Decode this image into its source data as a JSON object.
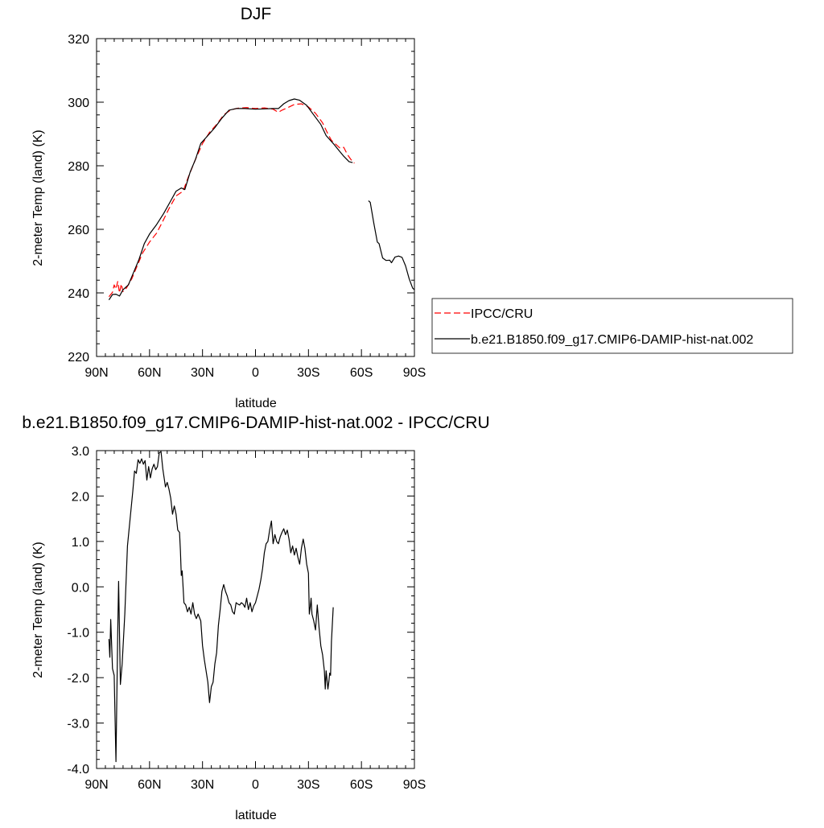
{
  "chart_data": [
    {
      "type": "line",
      "title": "DJF",
      "xlabel": "latitude",
      "ylabel": "2-meter Temp (land) (K)",
      "xlim": [
        90,
        -90
      ],
      "ylim": [
        220,
        320
      ],
      "xticks": [
        90,
        60,
        30,
        0,
        -30,
        -60,
        -90
      ],
      "xtick_labels": [
        "90N",
        "60N",
        "30N",
        "0",
        "30S",
        "60S",
        "90S"
      ],
      "yticks": [
        220,
        240,
        260,
        280,
        300,
        320
      ],
      "ytick_labels": [
        "220",
        "240",
        "260",
        "280",
        "300",
        "320"
      ],
      "legend": "outside-right",
      "series": [
        {
          "name": "IPCC/CRU",
          "color": "#ff0000",
          "dash": "dashed",
          "segments": [
            [
              [
                83,
                238.8
              ],
              [
                81,
                240.2
              ],
              [
                80,
                242.5
              ],
              [
                79,
                241.2
              ],
              [
                78,
                243.6
              ],
              [
                77,
                240.0
              ],
              [
                76,
                242.8
              ],
              [
                75,
                240.4
              ],
              [
                73,
                241.6
              ],
              [
                70,
                244.5
              ],
              [
                67,
                248.5
              ],
              [
                64,
                252.5
              ],
              [
                60,
                256.0
              ],
              [
                56,
                258.8
              ],
              [
                53,
                262.0
              ],
              [
                49,
                266.5
              ],
              [
                45,
                270.5
              ],
              [
                41,
                272.0
              ],
              [
                38,
                276.5
              ],
              [
                34,
                282.0
              ],
              [
                30,
                287.0
              ],
              [
                26,
                290.5
              ],
              [
                22,
                293.0
              ],
              [
                18,
                296.0
              ],
              [
                14,
                297.6
              ],
              [
                10,
                298.1
              ],
              [
                5,
                298.3
              ],
              [
                0,
                298.0
              ],
              [
                -5,
                298.2
              ],
              [
                -10,
                297.8
              ],
              [
                -13,
                296.8
              ],
              [
                -15,
                297.5
              ],
              [
                -18,
                298.2
              ],
              [
                -22,
                299.3
              ],
              [
                -26,
                299.5
              ],
              [
                -30,
                298.5
              ],
              [
                -34,
                296.5
              ],
              [
                -38,
                293.5
              ],
              [
                -41,
                290.0
              ],
              [
                -43,
                288.0
              ],
              [
                -46,
                286.5
              ],
              [
                -48,
                285.5
              ],
              [
                -50,
                285.8
              ],
              [
                -52,
                283.6
              ],
              [
                -54,
                282.0
              ],
              [
                -56,
                280.8
              ]
            ]
          ]
        },
        {
          "name": "b.e21.B1850.f09_g17.CMIP6-DAMIP-hist-nat.002",
          "color": "#000000",
          "dash": "solid",
          "segments": [
            [
              [
                83,
                237.8
              ],
              [
                81,
                239.5
              ],
              [
                79,
                239.6
              ],
              [
                77,
                239.0
              ],
              [
                75,
                241.0
              ],
              [
                72,
                242.5
              ],
              [
                69,
                246.5
              ],
              [
                66,
                250.5
              ],
              [
                63,
                255.5
              ],
              [
                60,
                258.5
              ],
              [
                56,
                261.5
              ],
              [
                52,
                265.0
              ],
              [
                48,
                269.0
              ],
              [
                45,
                272.0
              ],
              [
                42,
                273.0
              ],
              [
                40,
                272.5
              ],
              [
                37,
                278.0
              ],
              [
                34,
                282.0
              ],
              [
                31,
                287.0
              ],
              [
                27,
                289.5
              ],
              [
                23,
                292.0
              ],
              [
                19,
                295.0
              ],
              [
                15,
                297.5
              ],
              [
                11,
                298.0
              ],
              [
                6,
                298.0
              ],
              [
                0,
                297.8
              ],
              [
                -5,
                297.9
              ],
              [
                -10,
                298.0
              ],
              [
                -13,
                298.0
              ],
              [
                -16,
                299.5
              ],
              [
                -19,
                300.5
              ],
              [
                -22,
                301.0
              ],
              [
                -25,
                300.6
              ],
              [
                -29,
                299.0
              ],
              [
                -33,
                296.0
              ],
              [
                -37,
                293.0
              ],
              [
                -40,
                289.5
              ],
              [
                -44,
                287.0
              ],
              [
                -47,
                285.0
              ],
              [
                -50,
                283.0
              ],
              [
                -53,
                281.3
              ],
              [
                -55,
                281.0
              ]
            ],
            [
              [
                -64,
                269.0
              ],
              [
                -65,
                268.5
              ],
              [
                -67,
                262.0
              ],
              [
                -69,
                256.0
              ],
              [
                -70,
                255.5
              ],
              [
                -72,
                251.0
              ],
              [
                -74,
                250.2
              ],
              [
                -76,
                250.3
              ],
              [
                -77,
                249.5
              ],
              [
                -79,
                251.3
              ],
              [
                -81,
                251.6
              ],
              [
                -83,
                251.2
              ],
              [
                -85,
                248.5
              ],
              [
                -87,
                244.5
              ],
              [
                -89,
                241.5
              ],
              [
                -90,
                241.0
              ]
            ]
          ]
        }
      ]
    },
    {
      "type": "line",
      "title": "b.e21.B1850.f09_g17.CMIP6-DAMIP-hist-nat.002 - IPCC/CRU",
      "xlabel": "latitude",
      "ylabel": "2-meter Temp (land) (K)",
      "xlim": [
        90,
        -90
      ],
      "ylim": [
        -4.0,
        3.0
      ],
      "xticks": [
        90,
        60,
        30,
        0,
        -30,
        -60,
        -90
      ],
      "xtick_labels": [
        "90N",
        "60N",
        "30N",
        "0",
        "30S",
        "60S",
        "90S"
      ],
      "yticks": [
        -4.0,
        -3.0,
        -2.0,
        -1.0,
        0.0,
        1.0,
        2.0,
        3.0
      ],
      "ytick_labels": [
        "-4.0",
        "-3.0",
        "-2.0",
        "-1.0",
        "0.0",
        "1.0",
        "2.0",
        "3.0"
      ],
      "series": [
        {
          "color": "#000000",
          "dash": "solid",
          "segments": [
            [
              [
                83,
                -1.15
              ],
              [
                82.5,
                -1.55
              ],
              [
                82,
                -0.72
              ],
              [
                81,
                -1.8
              ],
              [
                80,
                -1.95
              ],
              [
                79,
                -3.85
              ],
              [
                78,
                -1.0
              ],
              [
                77.5,
                0.12
              ],
              [
                76.5,
                -2.15
              ],
              [
                75.5,
                -1.7
              ],
              [
                74,
                -0.6
              ],
              [
                72.5,
                0.9
              ],
              [
                71,
                1.5
              ],
              [
                69.5,
                2.1
              ],
              [
                68.5,
                2.55
              ],
              [
                67.5,
                2.5
              ],
              [
                66.5,
                2.8
              ],
              [
                65.5,
                2.72
              ],
              [
                64.5,
                2.82
              ],
              [
                63.5,
                2.7
              ],
              [
                62.5,
                2.78
              ],
              [
                61.5,
                2.35
              ],
              [
                60.5,
                2.65
              ],
              [
                59.5,
                2.4
              ],
              [
                58.5,
                2.6
              ],
              [
                57.5,
                2.7
              ],
              [
                56.5,
                2.58
              ],
              [
                55.5,
                2.65
              ],
              [
                54.5,
                2.95
              ],
              [
                53.5,
                2.98
              ],
              [
                52.5,
                2.6
              ],
              [
                51,
                2.2
              ],
              [
                50,
                2.3
              ],
              [
                49,
                2.15
              ],
              [
                48,
                1.95
              ],
              [
                47,
                1.6
              ],
              [
                46,
                1.78
              ],
              [
                45,
                1.6
              ],
              [
                44,
                1.25
              ],
              [
                43,
                1.2
              ],
              [
                42.5,
                0.8
              ],
              [
                42,
                0.25
              ],
              [
                41.5,
                0.35
              ],
              [
                40.5,
                -0.35
              ],
              [
                39.5,
                -0.4
              ],
              [
                38.5,
                -0.55
              ],
              [
                37.5,
                -0.45
              ],
              [
                36.5,
                -0.6
              ],
              [
                35.5,
                -0.35
              ],
              [
                34.5,
                -0.6
              ],
              [
                33.5,
                -0.7
              ],
              [
                32.5,
                -0.6
              ],
              [
                31,
                -0.75
              ],
              [
                30,
                -1.3
              ],
              [
                29,
                -1.6
              ],
              [
                28,
                -1.85
              ],
              [
                27,
                -2.1
              ],
              [
                26,
                -2.55
              ],
              [
                25,
                -2.2
              ],
              [
                24,
                -2.1
              ],
              [
                23,
                -1.7
              ],
              [
                22,
                -1.45
              ],
              [
                21,
                -0.85
              ],
              [
                20,
                -0.5
              ],
              [
                19,
                -0.1
              ],
              [
                18,
                0.05
              ],
              [
                17,
                -0.1
              ],
              [
                16,
                -0.2
              ],
              [
                15,
                -0.35
              ],
              [
                14,
                -0.4
              ],
              [
                13,
                -0.55
              ],
              [
                12,
                -0.6
              ],
              [
                11,
                -0.35
              ],
              [
                10,
                -0.38
              ],
              [
                9,
                -0.4
              ],
              [
                8,
                -0.35
              ],
              [
                7,
                -0.38
              ],
              [
                6,
                -0.45
              ],
              [
                5,
                -0.25
              ],
              [
                4,
                -0.5
              ],
              [
                3,
                -0.35
              ],
              [
                2,
                -0.55
              ],
              [
                1,
                -0.42
              ],
              [
                0,
                -0.35
              ],
              [
                -1,
                -0.2
              ],
              [
                -2,
                -0.05
              ],
              [
                -3,
                0.15
              ],
              [
                -4,
                0.4
              ],
              [
                -5,
                0.75
              ],
              [
                -6,
                0.95
              ],
              [
                -7,
                1.0
              ],
              [
                -8,
                1.25
              ],
              [
                -9,
                1.45
              ],
              [
                -10,
                0.95
              ],
              [
                -11,
                1.15
              ],
              [
                -12,
                1.0
              ],
              [
                -13,
                0.95
              ],
              [
                -14,
                1.1
              ],
              [
                -15,
                1.2
              ],
              [
                -16,
                1.28
              ],
              [
                -17,
                1.15
              ],
              [
                -18,
                1.25
              ],
              [
                -19,
                1.05
              ],
              [
                -20,
                0.75
              ],
              [
                -21,
                0.9
              ],
              [
                -22,
                0.7
              ],
              [
                -23,
                0.85
              ],
              [
                -24,
                0.65
              ],
              [
                -25,
                0.5
              ],
              [
                -26,
                0.85
              ],
              [
                -27,
                1.05
              ],
              [
                -28,
                0.85
              ],
              [
                -29,
                0.5
              ],
              [
                -30,
                0.3
              ],
              [
                -30.5,
                -0.6
              ],
              [
                -31,
                -0.45
              ],
              [
                -31.5,
                -0.25
              ],
              [
                -32,
                -0.6
              ],
              [
                -33,
                -0.75
              ],
              [
                -34,
                -0.95
              ],
              [
                -35,
                -0.4
              ],
              [
                -36,
                -0.9
              ],
              [
                -37,
                -1.3
              ],
              [
                -38,
                -1.5
              ],
              [
                -39,
                -1.85
              ],
              [
                -39.5,
                -2.25
              ],
              [
                -40,
                -1.85
              ],
              [
                -41,
                -2.25
              ],
              [
                -41.5,
                -2.1
              ],
              [
                -42,
                -1.9
              ],
              [
                -42.5,
                -1.95
              ],
              [
                -43,
                -1.2
              ],
              [
                -44,
                -0.45
              ]
            ]
          ]
        }
      ]
    }
  ]
}
